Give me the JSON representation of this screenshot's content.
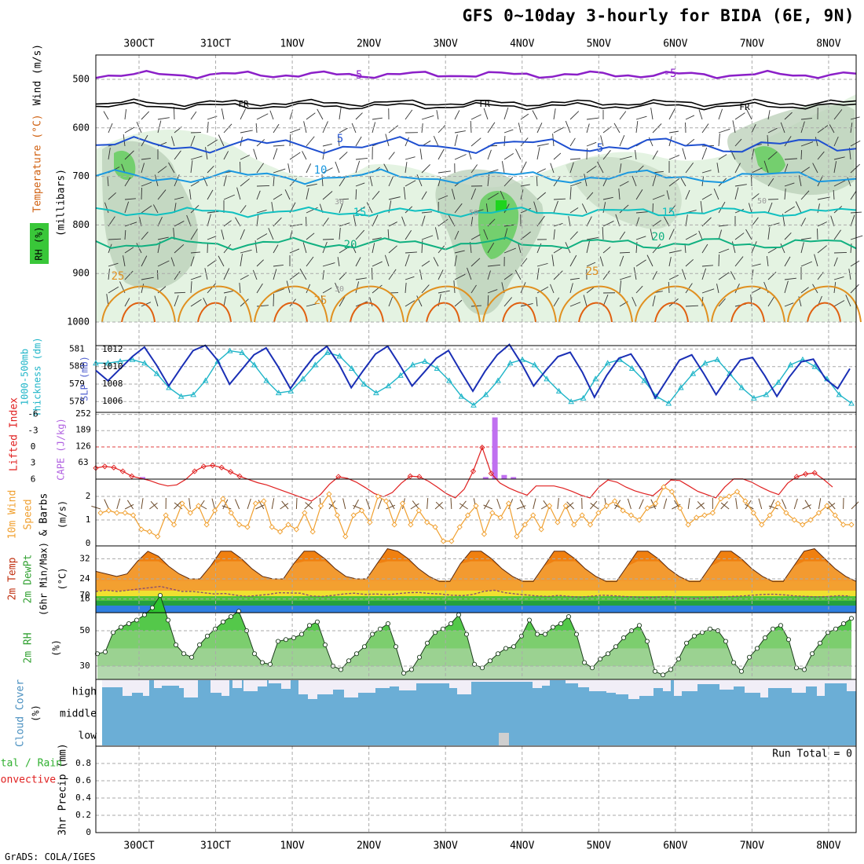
{
  "title": "GFS 0~10day 3-hourly for BIDA (6E, 9N)",
  "credit": "GrADS: COLA/IGES",
  "dates": [
    "30OCT",
    "31OCT",
    "1NOV",
    "2NOV",
    "3NOV",
    "4NOV",
    "5NOV",
    "6NOV",
    "7NOV",
    "8NOV"
  ],
  "colors": {
    "temp500": "#8b1fc8",
    "freezing": "#000000",
    "t5": "#1e4fd0",
    "t10": "#1a98e0",
    "t15": "#10c0c0",
    "t20": "#10b080",
    "t25": "#e09020",
    "t30": "#e06010",
    "slp": "#1a2fb5",
    "thickness": "#1fb5c8",
    "lifted": "#e02020",
    "cape": "#c070f0",
    "wind10m": "#f0a030",
    "rh": "#30c030",
    "cloud": "#6baed6",
    "tempFill": "#f08010"
  },
  "panels": {
    "upper": {
      "y_axis_label": "(millibars)",
      "left_labels": [
        "Wind (m/s)",
        "Temperature (°C)",
        "RH (%)"
      ],
      "levels": [
        500,
        600,
        700,
        800,
        900,
        1000
      ],
      "contour_labels": [
        "-5",
        "FR",
        "5",
        "10",
        "15",
        "20",
        "25",
        "30",
        "50"
      ]
    },
    "slp": {
      "left_labels": [
        "1000-500mb",
        "Thickness (dm)",
        "SLP (mb)"
      ],
      "thickness_ticks": [
        578,
        579,
        580,
        581
      ],
      "slp_ticks": [
        1006,
        1008,
        1010,
        1012
      ]
    },
    "cape": {
      "left_labels": [
        "Lifted Index",
        "CAPE (J/kg)"
      ],
      "li_ticks": [
        "-6",
        "-3",
        "0",
        "3",
        "6"
      ],
      "cape_ticks": [
        "252",
        "189",
        "126",
        "63"
      ]
    },
    "wind10": {
      "left_labels": [
        "10m Wind",
        "Speed",
        "& Barbs",
        "(m/s)"
      ],
      "ticks": [
        "0",
        "1",
        "2"
      ]
    },
    "temp2m": {
      "left_labels": [
        "2m Temp",
        "2m DewPt",
        "(6hr Min/Max)",
        "(°C)"
      ],
      "ticks": [
        "16",
        "24",
        "32"
      ]
    },
    "rh2m": {
      "left_labels": [
        "2m RH",
        "(%)"
      ],
      "ticks": [
        "30",
        "50",
        "70"
      ]
    },
    "cloud": {
      "left_labels": [
        "Cloud Cover",
        "(%)"
      ],
      "layers": [
        "high",
        "middle",
        "low"
      ]
    },
    "precip": {
      "left_labels": [
        "3hr Precip (mm)",
        "Total / Rain",
        "Convective"
      ],
      "ticks": [
        "0",
        "0.2",
        "0.4",
        "0.6",
        "0.8"
      ],
      "run_total": "Run Total = 0"
    }
  },
  "chart_data": [
    {
      "type": "line",
      "panel": "slp",
      "title": "SLP (mb) and 1000-500mb Thickness (dm)",
      "series": [
        {
          "name": "SLP (mb)",
          "values": [
            1009.6,
            1008.4,
            1009.8,
            1011.2,
            1012.3,
            1010.2,
            1007.8,
            1009.9,
            1011.9,
            1012.5,
            1010.8,
            1008.0,
            1009.7,
            1011.4,
            1012.2,
            1010.0,
            1007.5,
            1009.5,
            1011.3,
            1012.4,
            1010.3,
            1007.6,
            1009.6,
            1011.5,
            1012.4,
            1010.2,
            1007.8,
            1009.4,
            1011.0,
            1011.9,
            1009.5,
            1007.2,
            1009.5,
            1011.4,
            1012.6,
            1010.4,
            1007.8,
            1009.6,
            1011.2,
            1011.7,
            1009.4,
            1006.5,
            1009.0,
            1011.0,
            1011.5,
            1009.4,
            1006.4,
            1008.6,
            1010.8,
            1011.4,
            1009.2,
            1006.8,
            1008.9,
            1010.8,
            1011.1,
            1009.0,
            1006.6,
            1008.8,
            1010.6,
            1010.9,
            1008.6,
            1007.5,
            1009.8
          ]
        },
        {
          "name": "1000-500mb Thickness (dm)",
          "values": [
            580.2,
            580.2,
            580.3,
            580.4,
            580.2,
            579.6,
            578.8,
            578.3,
            578.4,
            579.2,
            580.3,
            580.9,
            580.8,
            580.1,
            579.2,
            578.5,
            578.6,
            579.3,
            580.1,
            580.8,
            580.6,
            579.9,
            579.0,
            578.5,
            578.9,
            579.5,
            580.1,
            580.3,
            579.9,
            579.2,
            578.3,
            577.8,
            578.4,
            579.2,
            580.2,
            580.4,
            580.1,
            579.3,
            578.6,
            578.0,
            578.2,
            579.3,
            580.2,
            580.4,
            579.9,
            579.2,
            578.3,
            577.9,
            578.8,
            579.6,
            580.2,
            580.4,
            579.6,
            578.8,
            578.2,
            578.4,
            579.1,
            580.1,
            580.4,
            580.0,
            579.3,
            578.4,
            577.9
          ]
        }
      ]
    },
    {
      "type": "bar",
      "panel": "cape",
      "title": "Lifted Index and CAPE (J/kg)",
      "series": [
        {
          "name": "Lifted Index",
          "values": [
            3.9,
            3.6,
            3.8,
            4.5,
            5.4,
            5.8,
            6.2,
            6.8,
            7.2,
            7.0,
            6.0,
            4.5,
            3.6,
            3.4,
            3.8,
            4.6,
            5.4,
            6.0,
            6.6,
            7.0,
            7.6,
            8.2,
            8.8,
            9.4,
            10.0,
            8.8,
            6.9,
            5.5,
            5.8,
            6.5,
            7.5,
            8.6,
            9.2,
            8.4,
            6.7,
            5.4,
            5.5,
            6.3,
            7.4,
            8.6,
            9.4,
            7.8,
            4.5,
            0.1,
            4.9,
            6.7,
            7.6,
            8.3,
            8.9,
            7.2,
            7.2,
            7.2,
            7.6,
            8.2,
            8.9,
            9.4,
            7.4,
            6.1,
            6.5,
            7.4,
            8.1,
            8.6,
            9.0,
            7.6,
            6.1,
            6.2,
            7.2,
            8.2,
            8.8,
            9.4,
            7.4,
            5.9,
            5.9,
            6.5,
            7.4,
            8.2,
            8.8,
            6.7,
            5.5,
            5.0,
            4.8,
            6.0,
            7.4
          ]
        },
        {
          "name": "CAPE (J/kg)",
          "values": [
            0,
            0,
            0,
            0,
            0,
            8,
            0,
            0,
            0,
            0,
            0,
            0,
            0,
            0,
            0,
            0,
            0,
            0,
            0,
            0,
            0,
            0,
            0,
            0,
            0,
            0,
            0,
            0,
            0,
            0,
            0,
            0,
            0,
            0,
            0,
            0,
            0,
            0,
            0,
            0,
            0,
            0,
            8,
            238,
            16,
            8,
            0,
            0,
            0,
            0,
            0,
            0,
            0,
            0,
            0,
            0,
            0,
            0,
            0,
            0,
            0,
            0,
            0,
            0,
            0,
            0,
            0,
            0,
            0,
            0,
            0,
            0,
            0,
            0,
            0,
            0,
            0,
            0,
            0,
            0,
            0,
            0,
            0
          ]
        }
      ]
    },
    {
      "type": "line",
      "panel": "wind10",
      "title": "10m Wind Speed (m/s)",
      "series": [
        {
          "name": "10m Wind Speed",
          "values": [
            1.3,
            1.4,
            1.3,
            1.3,
            1.2,
            0.6,
            0.5,
            0.3,
            1.2,
            0.8,
            1.7,
            1.3,
            1.6,
            0.8,
            1.4,
            1.9,
            1.3,
            0.8,
            0.7,
            1.7,
            1.8,
            0.7,
            0.5,
            0.8,
            0.6,
            1.3,
            0.5,
            1.6,
            2.1,
            1.2,
            0.3,
            1.2,
            1.4,
            0.9,
            2.0,
            1.8,
            0.8,
            1.7,
            0.8,
            1.4,
            0.9,
            0.7,
            0.1,
            0.1,
            0.7,
            1.2,
            1.6,
            0.4,
            1.3,
            1.1,
            1.7,
            0.3,
            0.8,
            1.2,
            0.6,
            1.6,
            0.9,
            1.6,
            0.8,
            1.2,
            0.8,
            1.3,
            1.6,
            1.8,
            1.4,
            1.2,
            1.0,
            1.5,
            1.7,
            2.4,
            2.2,
            1.5,
            0.8,
            1.1,
            1.2,
            1.3,
            1.9,
            2.0,
            2.2,
            1.8,
            1.3,
            0.8,
            1.2,
            1.7,
            1.3,
            1.0,
            0.8,
            1.0,
            1.3,
            1.6,
            1.2,
            0.8,
            0.8
          ]
        }
      ]
    },
    {
      "type": "area",
      "panel": "temp2m",
      "title": "2m Temp and 2m DewPt (°C)",
      "series": [
        {
          "name": "2m Temp",
          "values": [
            27,
            26,
            25,
            26,
            31,
            35,
            33,
            29,
            26,
            24,
            24,
            29,
            35,
            35,
            32,
            28,
            25,
            24,
            24,
            30,
            35,
            35,
            32,
            28,
            25,
            24,
            24,
            30,
            36,
            35,
            32,
            28,
            25,
            23,
            23,
            30,
            35,
            35,
            32,
            28,
            25,
            23,
            23,
            29,
            35,
            35,
            32,
            28,
            25,
            23,
            23,
            29,
            35,
            35,
            32,
            28,
            25,
            23,
            23,
            29,
            35,
            35,
            32,
            28,
            25,
            23,
            23,
            29,
            35,
            36,
            32,
            28,
            25,
            23
          ]
        },
        {
          "name": "2m DewPt",
          "values": [
            19,
            19.5,
            19,
            19.5,
            20,
            20.5,
            21,
            20,
            19,
            19,
            18.5,
            18,
            18.2,
            17.5,
            17,
            17.4,
            17.8,
            18.5,
            18.4,
            18.3,
            17.2,
            17.0,
            17.4,
            18.0,
            18.3,
            17.8,
            18.0,
            17.7,
            18.1,
            18.5,
            18.6,
            18.2,
            18.0,
            17.5,
            17.3,
            17.8,
            19,
            19.5,
            18.5,
            18.0,
            17.6,
            17.2,
            17.0,
            17.4,
            17.0,
            16.7,
            17.1,
            17.5,
            17.3,
            17.0,
            16.8,
            16.5,
            16.7,
            17.0,
            16.5,
            16.2,
            16.3,
            16.6,
            16.8,
            17.0,
            17.2,
            17.5,
            17.8,
            17.9,
            17.6,
            17.2,
            17.0,
            16.8,
            17.0,
            17.3,
            17.2
          ]
        }
      ]
    },
    {
      "type": "area",
      "panel": "rh2m",
      "title": "2m RH (%)",
      "series": [
        {
          "name": "2m RH",
          "values": [
            37,
            38,
            49,
            52,
            54,
            56,
            59,
            63,
            70,
            56,
            42,
            37,
            35,
            42,
            47,
            51,
            55,
            58,
            61,
            50,
            37,
            32,
            31,
            44,
            45,
            46,
            48,
            53,
            55,
            42,
            30,
            28,
            33,
            37,
            41,
            48,
            51,
            54,
            41,
            26,
            28,
            35,
            43,
            49,
            51,
            54,
            59,
            48,
            31,
            29,
            33,
            37,
            40,
            41,
            47,
            56,
            48,
            48,
            52,
            54,
            58,
            48,
            32,
            29,
            34,
            37,
            41,
            46,
            50,
            53,
            44,
            27,
            25,
            28,
            34,
            43,
            47,
            49,
            51,
            50,
            44,
            32,
            27,
            35,
            40,
            46,
            51,
            53,
            45,
            29,
            28,
            37,
            43,
            49,
            51,
            54,
            57
          ]
        }
      ]
    }
  ]
}
